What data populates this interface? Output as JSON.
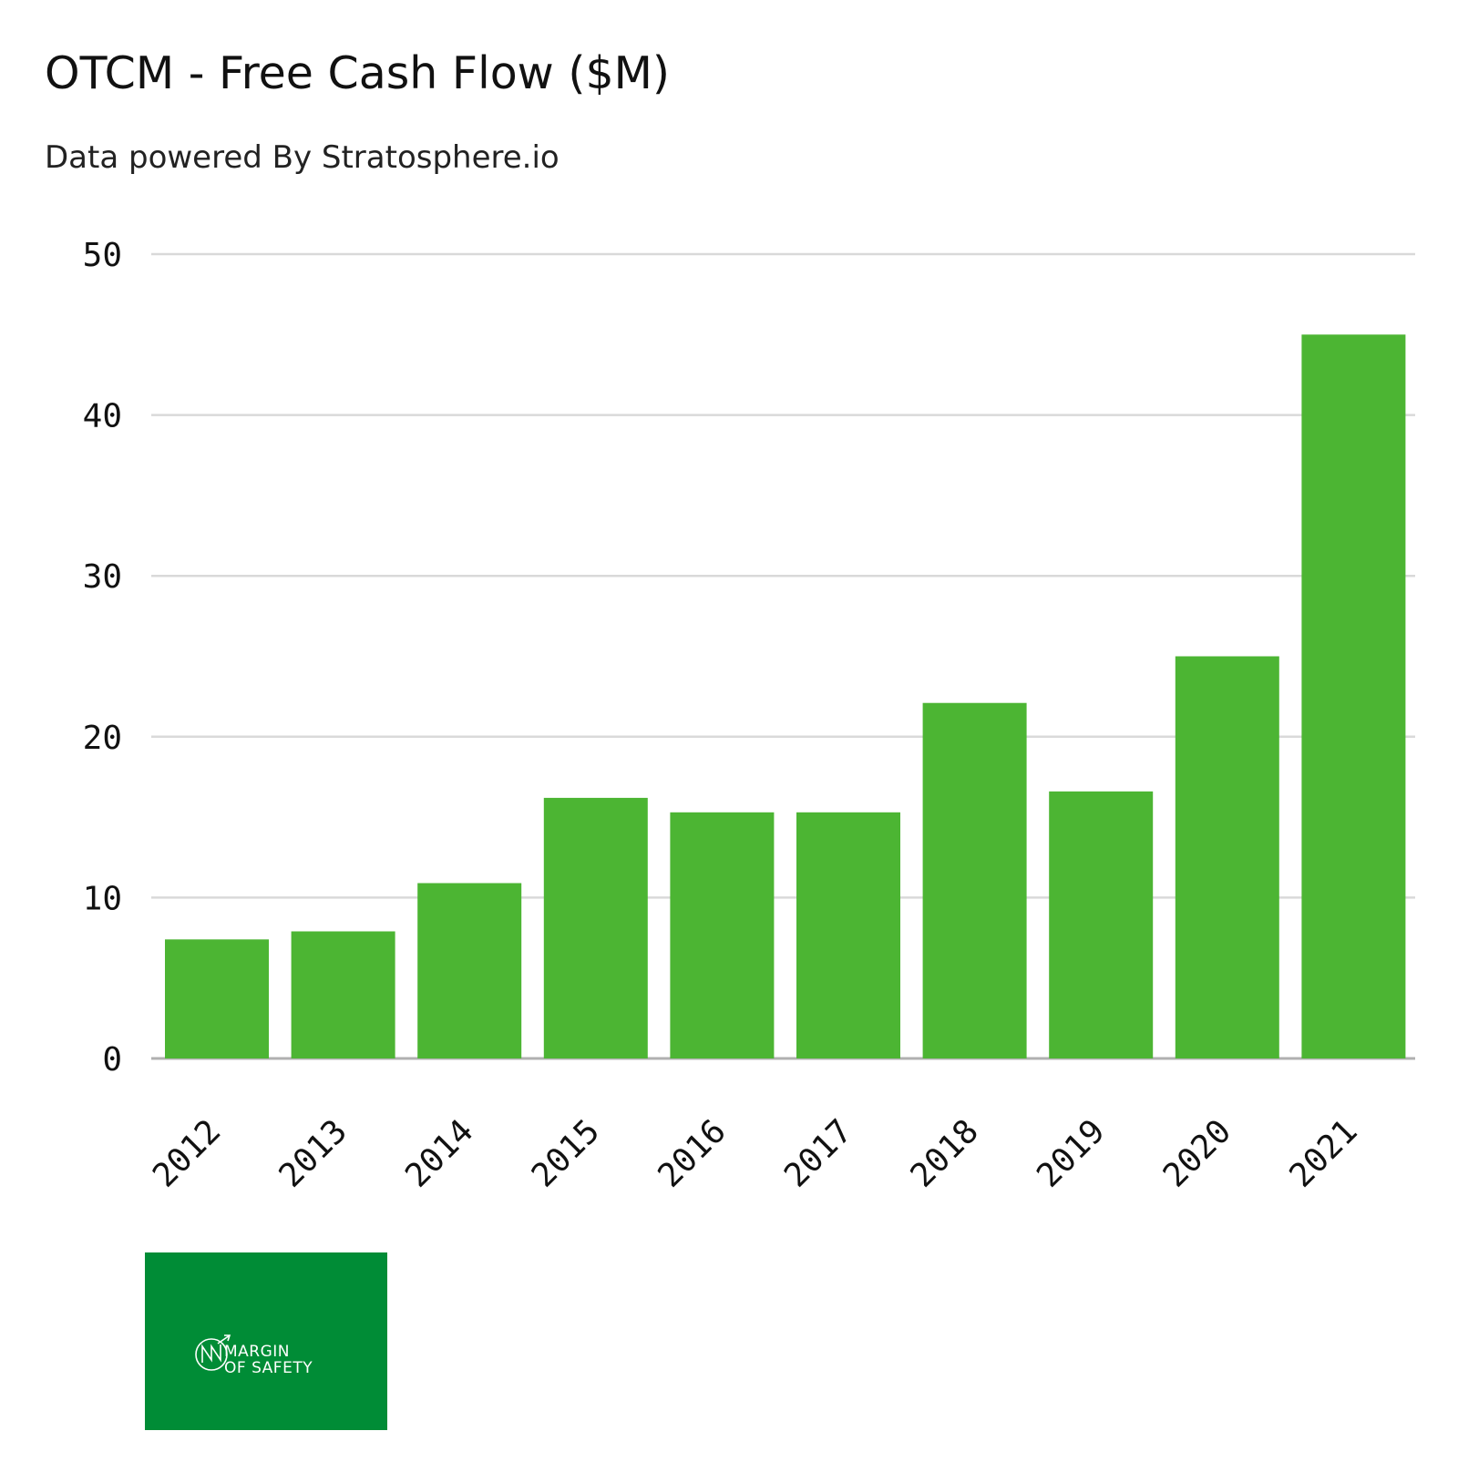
{
  "title": "OTCM - Free Cash Flow ($M)",
  "subtitle": "Data powered By Stratosphere.io",
  "colors": {
    "bar": "#4cb533",
    "grid": "#d9d9d9",
    "baseline": "#b0b0b0",
    "logo_bg": "#008c36"
  },
  "logo": {
    "line1": "MARGIN",
    "line2": "OF SAFETY"
  },
  "chart_data": {
    "type": "bar",
    "title": "OTCM - Free Cash Flow ($M)",
    "subtitle": "Data powered By Stratosphere.io",
    "xlabel": "",
    "ylabel": "",
    "categories": [
      "2012",
      "2013",
      "2014",
      "2015",
      "2016",
      "2017",
      "2018",
      "2019",
      "2020",
      "2021"
    ],
    "values": [
      7.4,
      7.9,
      10.9,
      16.2,
      15.3,
      15.3,
      22.1,
      16.6,
      25.0,
      45.0
    ],
    "ylim": [
      0,
      50
    ],
    "yticks": [
      "0",
      "10",
      "20",
      "30",
      "40",
      "50"
    ],
    "grid": true,
    "legend": "none"
  }
}
